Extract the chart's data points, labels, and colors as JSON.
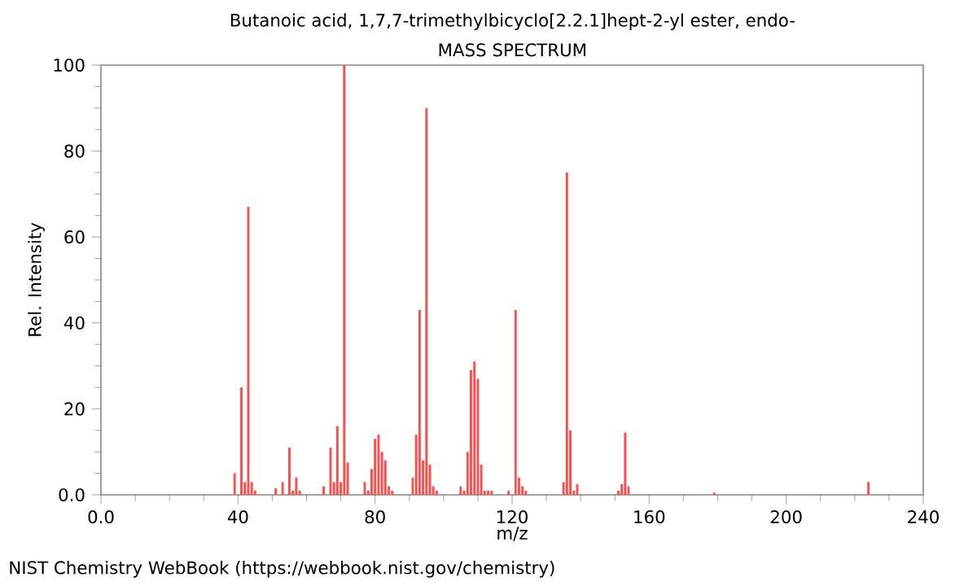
{
  "chart_data": {
    "type": "bar",
    "title": "Butanoic acid, 1,7,7-trimethylbicyclo[2.2.1]hept-2-yl ester, endo-",
    "subtitle": "MASS SPECTRUM",
    "xlabel": "m/z",
    "ylabel": "Rel. Intensity",
    "annotations": [
      "NIST Chemistry WebBook (https://webbook.nist.gov/chemistry)"
    ],
    "color": "#ff4d4d",
    "x": [
      39,
      41,
      42,
      43,
      44,
      45,
      51,
      53,
      55,
      56,
      57,
      58,
      65,
      67,
      68,
      69,
      70,
      71,
      72,
      77,
      78,
      79,
      80,
      81,
      82,
      83,
      84,
      85,
      91,
      92,
      93,
      94,
      95,
      96,
      97,
      98,
      105,
      106,
      107,
      108,
      109,
      110,
      111,
      112,
      113,
      114,
      119,
      121,
      122,
      123,
      124,
      135,
      136,
      137,
      138,
      139,
      151,
      152,
      153,
      154,
      179,
      224
    ],
    "values": [
      5,
      25,
      3,
      67,
      3,
      1,
      1.5,
      3,
      11,
      1,
      4,
      1,
      2,
      11,
      3,
      16,
      3,
      100,
      7.5,
      3,
      1,
      6,
      13,
      14,
      10,
      8,
      2,
      1,
      4,
      14,
      43,
      8,
      90,
      7,
      2,
      1,
      2,
      1,
      10,
      29,
      31,
      27,
      7,
      1,
      1,
      1,
      1,
      43,
      4,
      2,
      1,
      3,
      75,
      15,
      1,
      2.5,
      1,
      2.5,
      14.5,
      2,
      0.5,
      3
    ],
    "xlim": [
      0,
      240
    ],
    "xticks": [
      {
        "value": 0,
        "label": "0.0"
      },
      40,
      80,
      120,
      160,
      200,
      240
    ],
    "ylim": [
      0,
      100
    ],
    "yticks": [
      {
        "value": 0,
        "label": "0.0"
      },
      20,
      40,
      60,
      80,
      100
    ]
  }
}
